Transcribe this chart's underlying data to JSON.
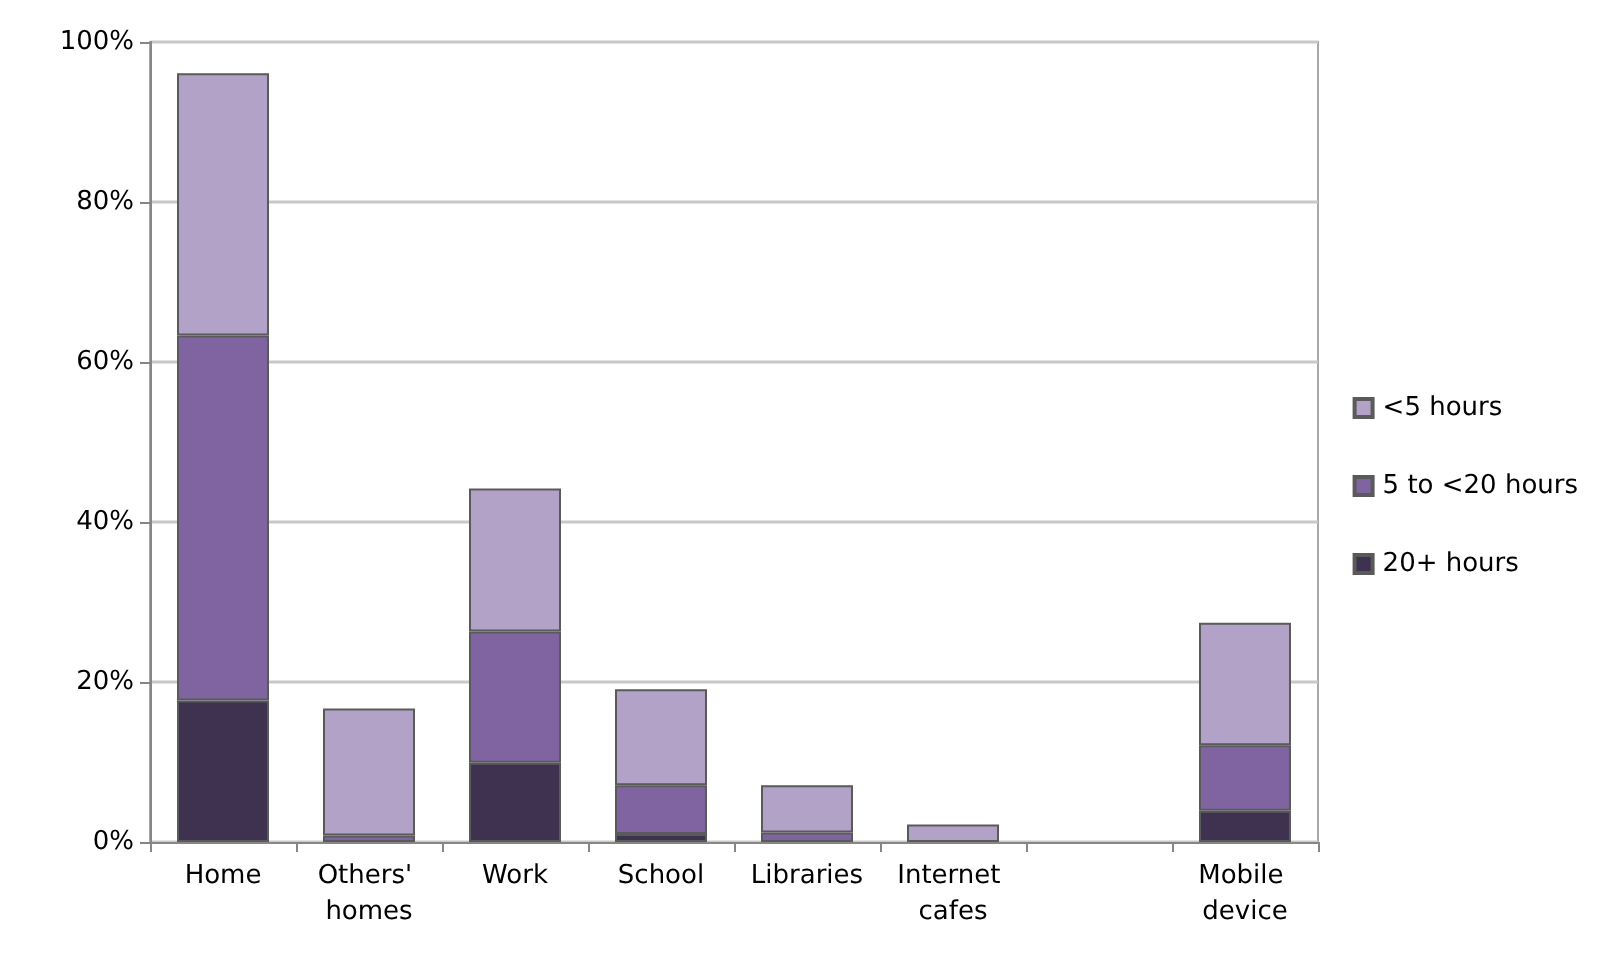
{
  "chart_data": {
    "type": "bar",
    "stacked": true,
    "categories": [
      "Home",
      "Others' homes",
      "Work",
      "School",
      "Libraries",
      "Internet cafes",
      null,
      "Mobile device"
    ],
    "series": [
      {
        "name": "20+ hours",
        "color": "#3f3150",
        "values": [
          17.7,
          0,
          9.9,
          1.0,
          0,
          0,
          0,
          3.9
        ]
      },
      {
        "name": "5 to <20 hours",
        "color": "#8064a2",
        "values": [
          45.6,
          0.8,
          16.4,
          6.1,
          1.2,
          0,
          0,
          8.2
        ]
      },
      {
        "name": "<5 hours",
        "color": "#b3a2c7",
        "values": [
          32.8,
          15.9,
          17.9,
          12.0,
          5.9,
          2.2,
          0,
          15.3
        ]
      }
    ],
    "ylim": [
      0,
      100
    ],
    "yticks": [
      {
        "value": 0,
        "label": "0%"
      },
      {
        "value": 20,
        "label": "20%"
      },
      {
        "value": 40,
        "label": "40%"
      },
      {
        "value": 60,
        "label": "60%"
      },
      {
        "value": 80,
        "label": "80%"
      },
      {
        "value": 100,
        "label": "100%"
      }
    ],
    "grid": "y",
    "legend": "right"
  }
}
